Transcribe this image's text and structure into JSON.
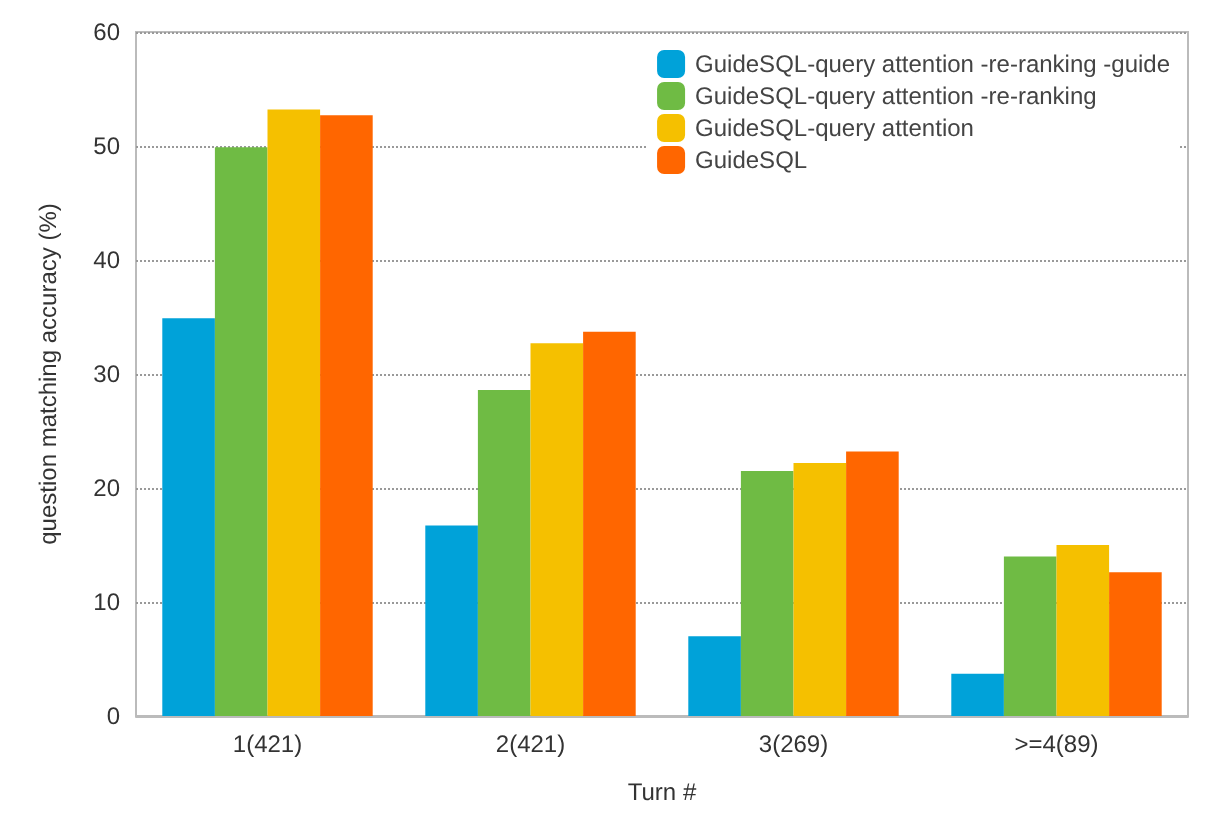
{
  "chart_data": {
    "type": "bar",
    "xlabel": "Turn #",
    "ylabel": "question matching accuracy (%)",
    "categories": [
      "1(421)",
      "2(421)",
      "3(269)",
      ">=4(89)"
    ],
    "series": [
      {
        "name": "GuideSQL-query attention -re-ranking -guide",
        "color": "#00a2d9",
        "values": [
          34.9,
          16.7,
          7.0,
          3.7
        ]
      },
      {
        "name": "GuideSQL-query attention -re-ranking",
        "color": "#6fbb44",
        "values": [
          49.9,
          28.6,
          21.5,
          14.0
        ]
      },
      {
        "name": "GuideSQL-query attention",
        "color": "#f5c000",
        "values": [
          53.2,
          32.7,
          22.2,
          15.0
        ]
      },
      {
        "name": "GuideSQL",
        "color": "#ff6600",
        "values": [
          52.7,
          33.7,
          23.2,
          12.6
        ]
      }
    ],
    "ylim": [
      0,
      60
    ],
    "yticks": [
      0,
      10,
      20,
      30,
      40,
      50,
      60
    ],
    "grid": "y",
    "legend": "top right"
  }
}
